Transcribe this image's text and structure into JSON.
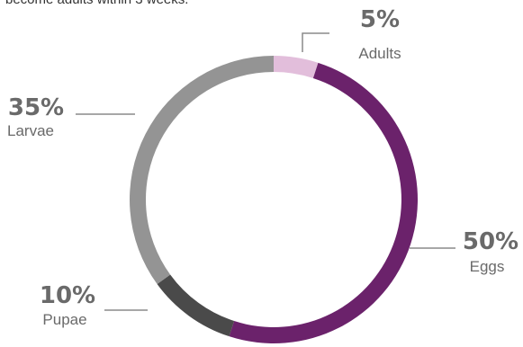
{
  "intro_text": "become adults within 3 weeks.",
  "chart_data": {
    "type": "pie",
    "donut": true,
    "title": "",
    "categories": [
      "Adults",
      "Eggs",
      "Pupae",
      "Larvae"
    ],
    "values": [
      5,
      50,
      10,
      35
    ],
    "labels": [
      "5%",
      "50%",
      "10%",
      "35%"
    ],
    "colors": [
      "#e2bedb",
      "#6b226b",
      "#4a4a4a",
      "#949494"
    ],
    "legend": "none"
  },
  "colors": {
    "label_text": "#6a6a6a",
    "leader_line": "#8a8a8a"
  }
}
